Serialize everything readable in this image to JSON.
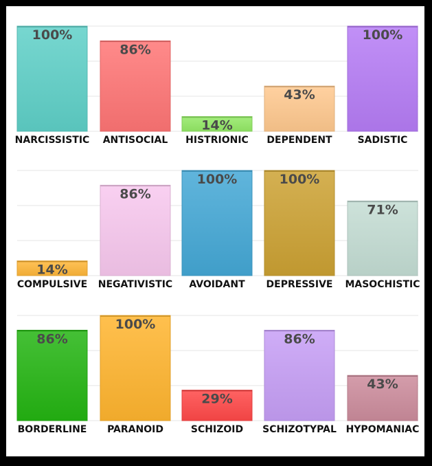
{
  "chart_data": [
    {
      "type": "bar",
      "categories": [
        "NARCISSISTIC",
        "ANTISOCIAL",
        "HISTRIONIC",
        "DEPENDENT",
        "SADISTIC"
      ],
      "values": [
        100,
        86,
        14,
        43,
        100
      ],
      "labels": [
        "100%",
        "86%",
        "14%",
        "43%",
        "100%"
      ],
      "colors": [
        "#5fd0c8",
        "#ff7575",
        "#94ea66",
        "#ffc98f",
        "#b67cf6"
      ],
      "ylim": [
        0,
        100
      ],
      "grid": true
    },
    {
      "type": "bar",
      "categories": [
        "COMPULSIVE",
        "NEGATIVISTIC",
        "AVOIDANT",
        "DEPRESSIVE",
        "MASOCHISTIC"
      ],
      "values": [
        14,
        86,
        100,
        100,
        71
      ],
      "labels": [
        "14%",
        "86%",
        "100%",
        "100%",
        "71%"
      ],
      "colors": [
        "#ffb739",
        "#f8c8ee",
        "#44a8d6",
        "#cca233",
        "#c4ddd4"
      ],
      "ylim": [
        0,
        100
      ],
      "grid": true
    },
    {
      "type": "bar",
      "categories": [
        "BORDERLINE",
        "PARANOID",
        "SCHIZOID",
        "SCHIZOTYPAL",
        "HYPOMANIAC"
      ],
      "values": [
        86,
        100,
        29,
        86,
        43
      ],
      "labels": [
        "86%",
        "100%",
        "29%",
        "86%",
        "43%"
      ],
      "colors": [
        "#24b512",
        "#ffb52f",
        "#ff4848",
        "#c69ef6",
        "#cc8c9c"
      ],
      "ylim": [
        0,
        100
      ],
      "grid": true
    }
  ]
}
